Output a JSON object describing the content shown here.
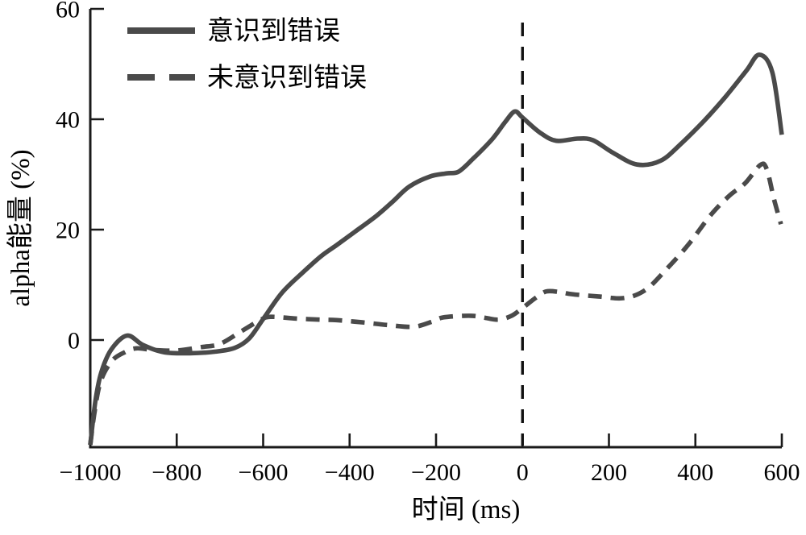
{
  "figure": {
    "background": "#ffffff",
    "line_color": "#4a4a4a",
    "axis_color": "#1a1a1a"
  },
  "chart_data": {
    "type": "line",
    "title": "",
    "xlabel": "时间 (ms)",
    "ylabel": "alpha能量 (%)",
    "xlim": [
      -1000,
      600
    ],
    "ylim": [
      -20,
      60
    ],
    "x_ticks": [
      -1000,
      -800,
      -600,
      -400,
      -200,
      0,
      200,
      400,
      600
    ],
    "y_ticks": [
      0,
      20,
      40,
      60
    ],
    "grid": false,
    "legend_position": "top-left",
    "event_marker_x": 0,
    "series": [
      {
        "name": "意识到错误",
        "style": "solid",
        "points": [
          [
            -1000,
            -19
          ],
          [
            -988,
            -11
          ],
          [
            -975,
            -6
          ],
          [
            -952,
            -1.8
          ],
          [
            -915,
            0.8
          ],
          [
            -878,
            -0.9
          ],
          [
            -830,
            -2.2
          ],
          [
            -770,
            -2.4
          ],
          [
            -710,
            -2.1
          ],
          [
            -665,
            -1.4
          ],
          [
            -632,
            0.3
          ],
          [
            -600,
            3.8
          ],
          [
            -556,
            8.6
          ],
          [
            -506,
            12.4
          ],
          [
            -466,
            15.2
          ],
          [
            -430,
            17.2
          ],
          [
            -388,
            19.6
          ],
          [
            -338,
            22.5
          ],
          [
            -300,
            25.1
          ],
          [
            -262,
            27.8
          ],
          [
            -215,
            29.6
          ],
          [
            -175,
            30.2
          ],
          [
            -148,
            30.5
          ],
          [
            -115,
            32.8
          ],
          [
            -70,
            36.4
          ],
          [
            -40,
            39.5
          ],
          [
            -18,
            41.4
          ],
          [
            0,
            40.3
          ],
          [
            40,
            37.6
          ],
          [
            78,
            36.1
          ],
          [
            128,
            36.5
          ],
          [
            163,
            36.2
          ],
          [
            210,
            33.9
          ],
          [
            265,
            31.8
          ],
          [
            320,
            32.5
          ],
          [
            370,
            35.8
          ],
          [
            420,
            39.7
          ],
          [
            470,
            44.1
          ],
          [
            518,
            48.8
          ],
          [
            548,
            51.7
          ],
          [
            578,
            48.5
          ],
          [
            600,
            37.2
          ]
        ]
      },
      {
        "name": "未意识到错误",
        "style": "dashed",
        "points": [
          [
            -1000,
            -19
          ],
          [
            -990,
            -13
          ],
          [
            -976,
            -7.5
          ],
          [
            -950,
            -3.8
          ],
          [
            -920,
            -2.2
          ],
          [
            -893,
            -1.5
          ],
          [
            -855,
            -1.8
          ],
          [
            -800,
            -1.9
          ],
          [
            -745,
            -1.3
          ],
          [
            -700,
            -0.7
          ],
          [
            -650,
            1.6
          ],
          [
            -607,
            3.6
          ],
          [
            -583,
            4.2
          ],
          [
            -525,
            3.9
          ],
          [
            -470,
            3.7
          ],
          [
            -430,
            3.6
          ],
          [
            -370,
            3.2
          ],
          [
            -310,
            2.7
          ],
          [
            -252,
            2.4
          ],
          [
            -210,
            3.3
          ],
          [
            -183,
            4.1
          ],
          [
            -120,
            4.4
          ],
          [
            -85,
            4.0
          ],
          [
            -55,
            3.7
          ],
          [
            -25,
            4.4
          ],
          [
            0,
            5.8
          ],
          [
            30,
            7.6
          ],
          [
            55,
            8.8
          ],
          [
            85,
            8.7
          ],
          [
            115,
            8.3
          ],
          [
            175,
            7.9
          ],
          [
            235,
            7.6
          ],
          [
            285,
            9.1
          ],
          [
            335,
            13.0
          ],
          [
            385,
            17.4
          ],
          [
            435,
            22.6
          ],
          [
            478,
            26.1
          ],
          [
            515,
            28.4
          ],
          [
            550,
            31.7
          ],
          [
            565,
            31.0
          ],
          [
            582,
            25.5
          ],
          [
            598,
            21.0
          ]
        ]
      }
    ]
  }
}
